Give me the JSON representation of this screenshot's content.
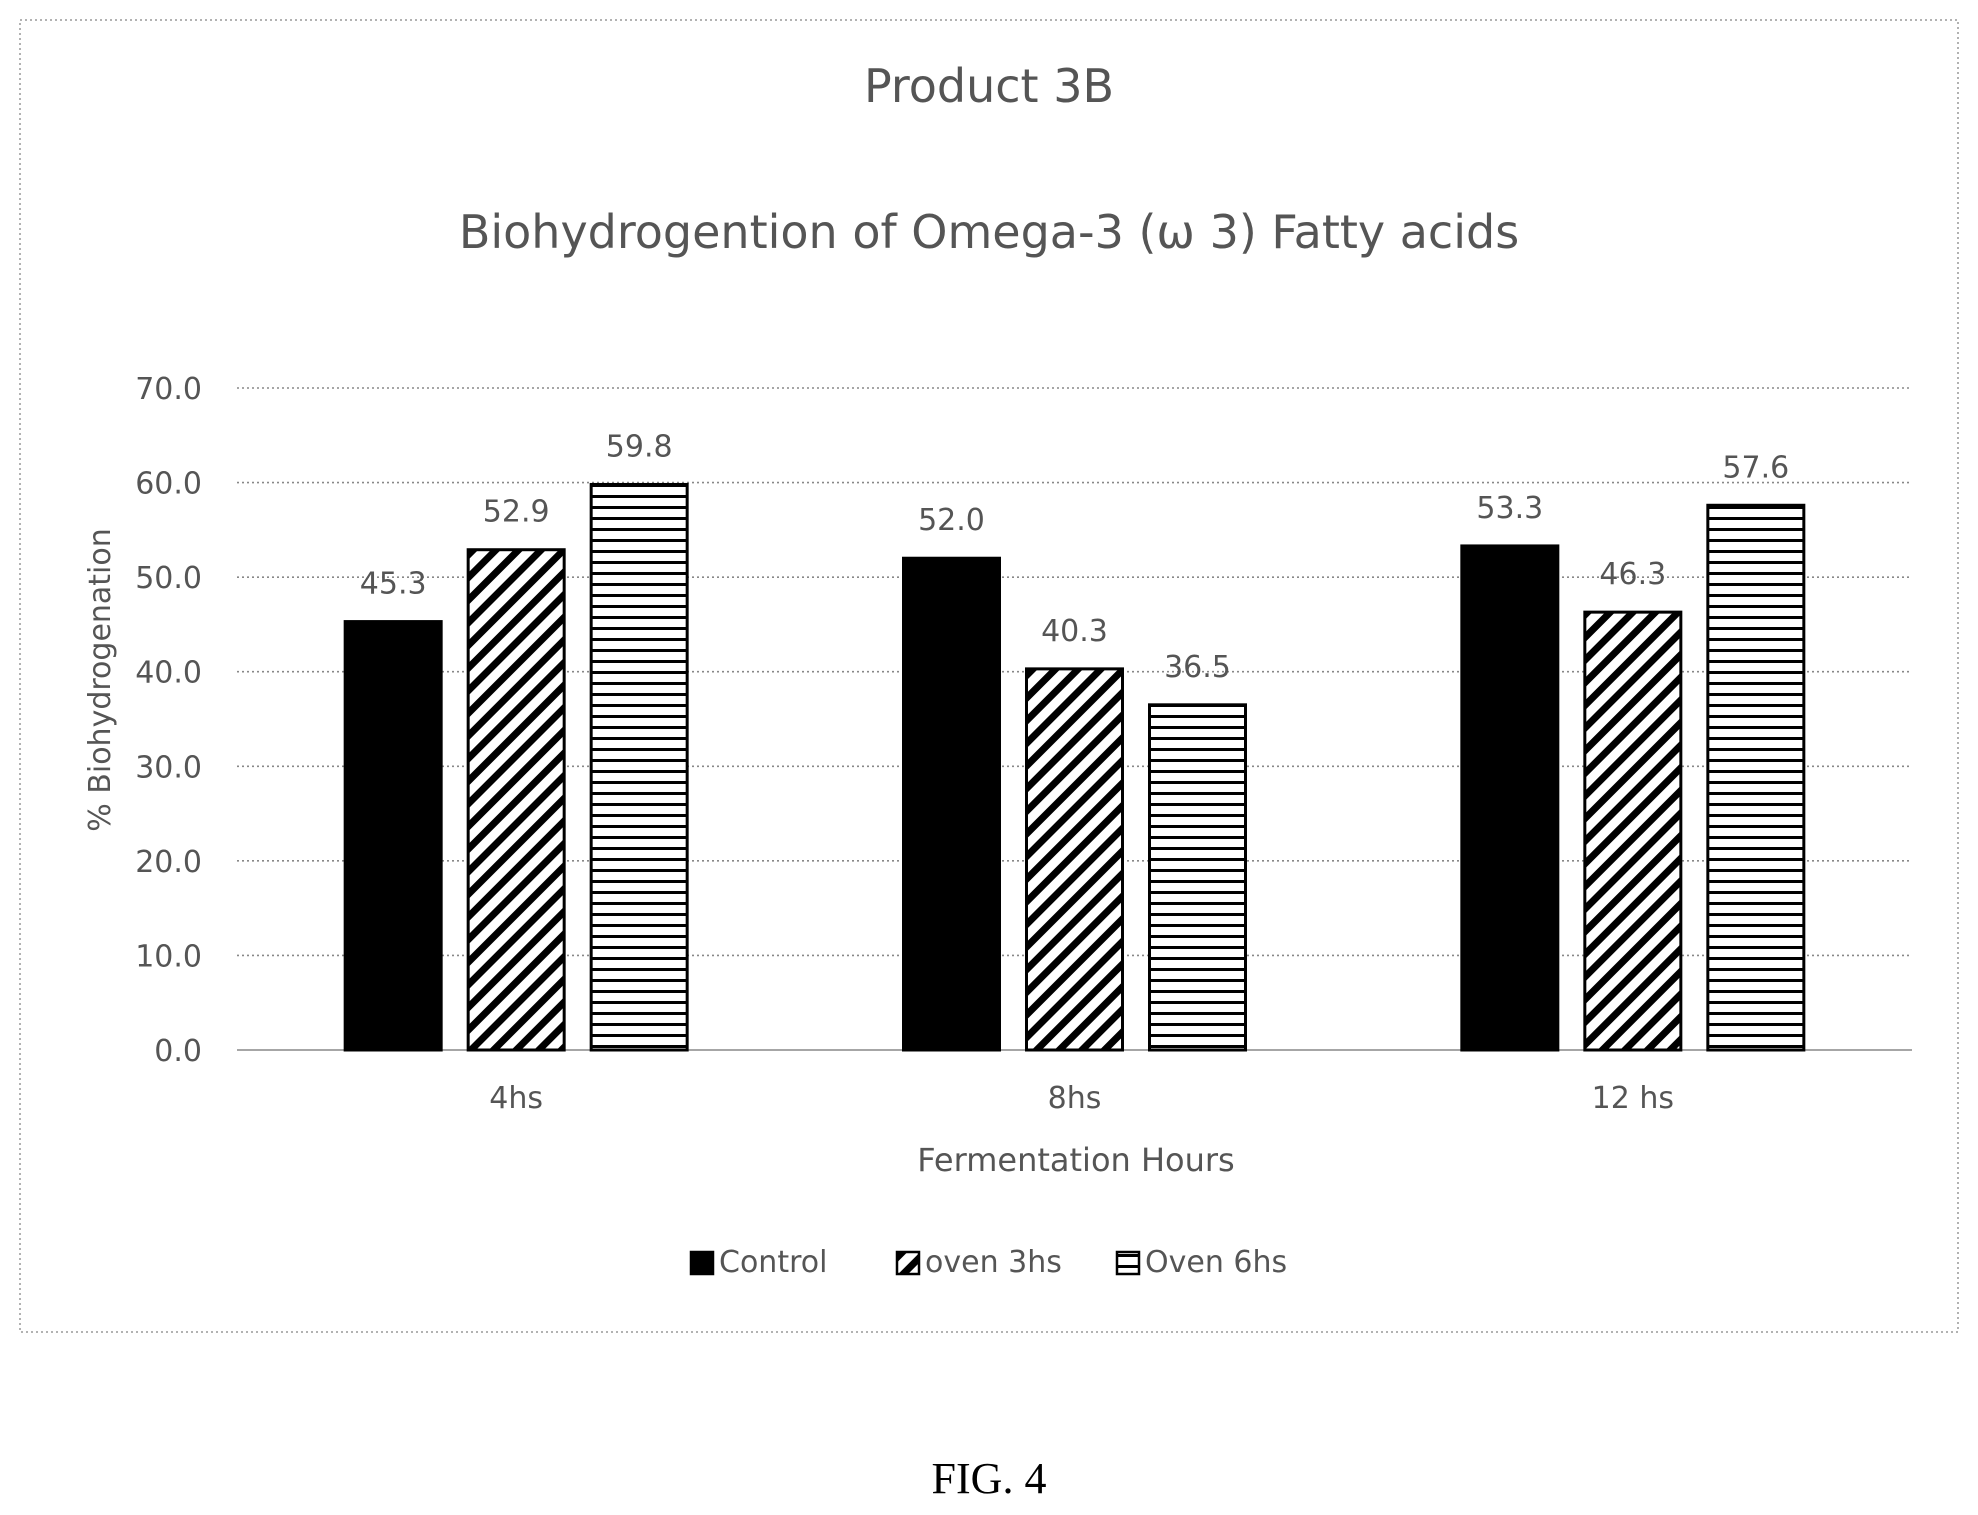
{
  "figure_caption": "FIG. 4",
  "chart_data": {
    "type": "bar",
    "title": "Product 3B",
    "subtitle": "Biohydrogention of Omega-3 (ω 3)  Fatty acids",
    "xlabel": "Fermentation Hours",
    "ylabel": "% Biohydrogenation",
    "categories": [
      "4hs",
      "8hs",
      "12 hs"
    ],
    "ylim": [
      0,
      70
    ],
    "yticks": [
      "0.0",
      "10.0",
      "20.0",
      "30.0",
      "40.0",
      "50.0",
      "60.0",
      "70.0"
    ],
    "grid": true,
    "legend_position": "bottom",
    "series": [
      {
        "name": "Control",
        "values": [
          45.3,
          52.0,
          53.3
        ],
        "labels": [
          "45.3",
          "52.0",
          "53.3"
        ],
        "pattern": "solid"
      },
      {
        "name": "oven 3hs",
        "values": [
          52.9,
          40.3,
          46.3
        ],
        "labels": [
          "52.9",
          "40.3",
          "46.3"
        ],
        "pattern": "diagonal"
      },
      {
        "name": "Oven 6hs",
        "values": [
          59.8,
          36.5,
          57.6
        ],
        "labels": [
          "59.8",
          "36.5",
          "57.6"
        ],
        "pattern": "horizontal"
      }
    ]
  }
}
